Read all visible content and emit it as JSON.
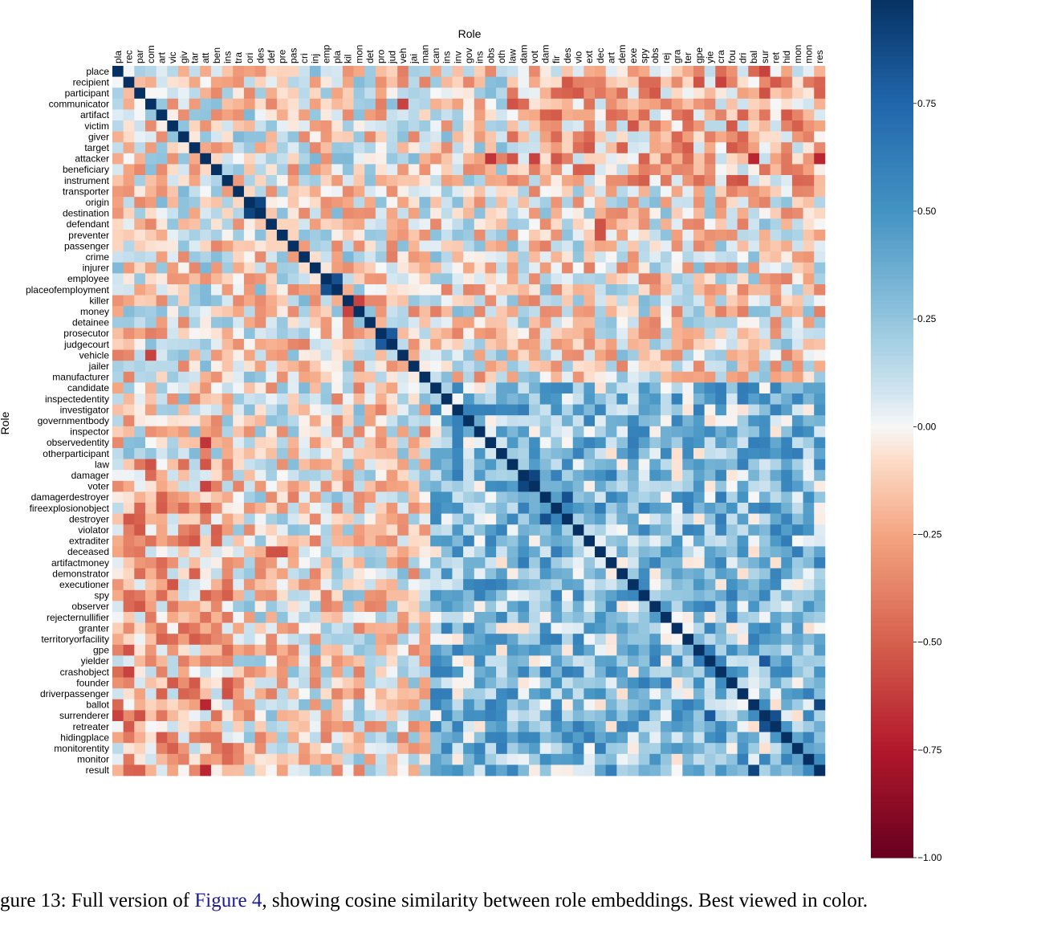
{
  "chart_data": {
    "type": "heatmap",
    "xlabel": "Role",
    "ylabel": "Role",
    "x_tick_labels": [
      "pla",
      "rec",
      "par",
      "com",
      "art",
      "vic",
      "giv",
      "tar",
      "att",
      "ben",
      "ins",
      "tra",
      "ori",
      "des",
      "def",
      "pre",
      "pas",
      "cri",
      "inj",
      "emp",
      "pla",
      "kil",
      "mon",
      "det",
      "pro",
      "jud",
      "veh",
      "jai",
      "man",
      "can",
      "ins",
      "inv",
      "gov",
      "ins",
      "obs",
      "oth",
      "law",
      "dam",
      "vot",
      "dam",
      "fir",
      "des",
      "vio",
      "ext",
      "dec",
      "art",
      "dem",
      "exe",
      "spy",
      "obs",
      "rej",
      "gra",
      "ter",
      "gpe",
      "yie",
      "cra",
      "fou",
      "dri",
      "bal",
      "sur",
      "ret",
      "hid",
      "mon",
      "mon",
      "res"
    ],
    "y_tick_labels": [
      "place",
      "recipient",
      "participant",
      "communicator",
      "artifact",
      "victim",
      "giver",
      "target",
      "attacker",
      "beneficiary",
      "instrument",
      "transporter",
      "origin",
      "destination",
      "defendant",
      "preventer",
      "passenger",
      "crime",
      "injurer",
      "employee",
      "placeofemployment",
      "killer",
      "money",
      "detainee",
      "prosecutor",
      "judgecourt",
      "vehicle",
      "jailer",
      "manufacturer",
      "candidate",
      "inspectedentity",
      "investigator",
      "governmentbody",
      "inspector",
      "observedentity",
      "otherparticipant",
      "law",
      "damager",
      "voter",
      "damagerdestroyer",
      "fireexplosionobject",
      "destroyer",
      "violator",
      "extraditer",
      "deceased",
      "artifactmoney",
      "demonstrator",
      "executioner",
      "spy",
      "observer",
      "rejecternullifier",
      "granter",
      "territoryorfacility",
      "gpe",
      "yielder",
      "crashobject",
      "founder",
      "driverpassenger",
      "ballot",
      "surrenderer",
      "retreater",
      "hidingplace",
      "monitorentity",
      "monitor",
      "result"
    ],
    "diagonal_value": 1.0,
    "off_diagonal_range": [
      -0.95,
      0.95
    ],
    "highlights": [
      {
        "row": "origin",
        "col": "des",
        "value": 0.9
      },
      {
        "row": "destination",
        "col": "ori",
        "value": 0.9
      },
      {
        "row": "employee",
        "col": "pla",
        "value": 0.85
      },
      {
        "row": "placeofemployment",
        "col": "emp",
        "value": 0.85
      },
      {
        "row": "killer",
        "col": "mon",
        "value": -0.6
      },
      {
        "row": "money",
        "col": "kil",
        "value": -0.6
      },
      {
        "row": "prosecutor",
        "col": "jud",
        "value": 0.8
      },
      {
        "row": "judgecourt",
        "col": "pro",
        "value": 0.8
      },
      {
        "row": "damager",
        "col": "vot",
        "value": 0.9
      },
      {
        "row": "voter",
        "col": "dam",
        "value": 0.9
      },
      {
        "row": "damagerdestroyer",
        "col": "des",
        "value": 0.85
      },
      {
        "row": "destroyer",
        "col": "dam",
        "value": 0.85
      },
      {
        "row": "monitorentity",
        "col": "mon",
        "value": 0.9
      },
      {
        "row": "monitor",
        "col": "mon",
        "value": 0.9
      },
      {
        "row": "ballot",
        "col": "res",
        "value": 0.9
      },
      {
        "row": "result",
        "col": "bal",
        "value": 0.9
      },
      {
        "row": "surrenderer",
        "col": "ret",
        "value": 0.85
      },
      {
        "row": "retreater",
        "col": "sur",
        "value": 0.85
      },
      {
        "row": "surrenderer",
        "col": "yie",
        "value": 0.8
      },
      {
        "row": "yielder",
        "col": "sur",
        "value": 0.8
      },
      {
        "row": "attacker",
        "col": "res",
        "value": -0.7
      },
      {
        "row": "recipient",
        "col": "cra",
        "value": -0.6
      },
      {
        "row": "crashobject",
        "col": "rec",
        "value": -0.6
      },
      {
        "row": "place",
        "col": "sur",
        "value": -0.6
      },
      {
        "row": "vehicle",
        "col": "com",
        "value": -0.6
      },
      {
        "row": "attacker",
        "col": "bal",
        "value": -0.65
      },
      {
        "row": "attacker",
        "col": "vot",
        "value": -0.6
      },
      {
        "row": "attacker",
        "col": "obs",
        "value": -0.55
      },
      {
        "row": "defendant",
        "col": "dec",
        "value": -0.55
      },
      {
        "row": "deceased",
        "col": "pre",
        "value": -0.55
      },
      {
        "row": "observedentity",
        "col": "att",
        "value": -0.65
      },
      {
        "row": "voter",
        "col": "att",
        "value": -0.6
      },
      {
        "row": "ballot",
        "col": "att",
        "value": -0.7
      },
      {
        "row": "result",
        "col": "att",
        "value": -0.7
      }
    ],
    "colorbar": {
      "colormap": "RdBu",
      "range": [
        -1.0,
        1.0
      ],
      "ticks": [
        "0.75",
        "0.50",
        "0.25",
        "0.00",
        "−0.25",
        "−0.50",
        "−0.75",
        "−1.00"
      ],
      "tick_values": [
        0.75,
        0.5,
        0.25,
        0.0,
        -0.25,
        -0.5,
        -0.75,
        -1.0
      ]
    }
  },
  "caption": {
    "prefix": "gure 13: Full version of ",
    "link": "Figure 4",
    "suffix": ", showing cosine similarity between role embeddings. Best viewed in color."
  }
}
